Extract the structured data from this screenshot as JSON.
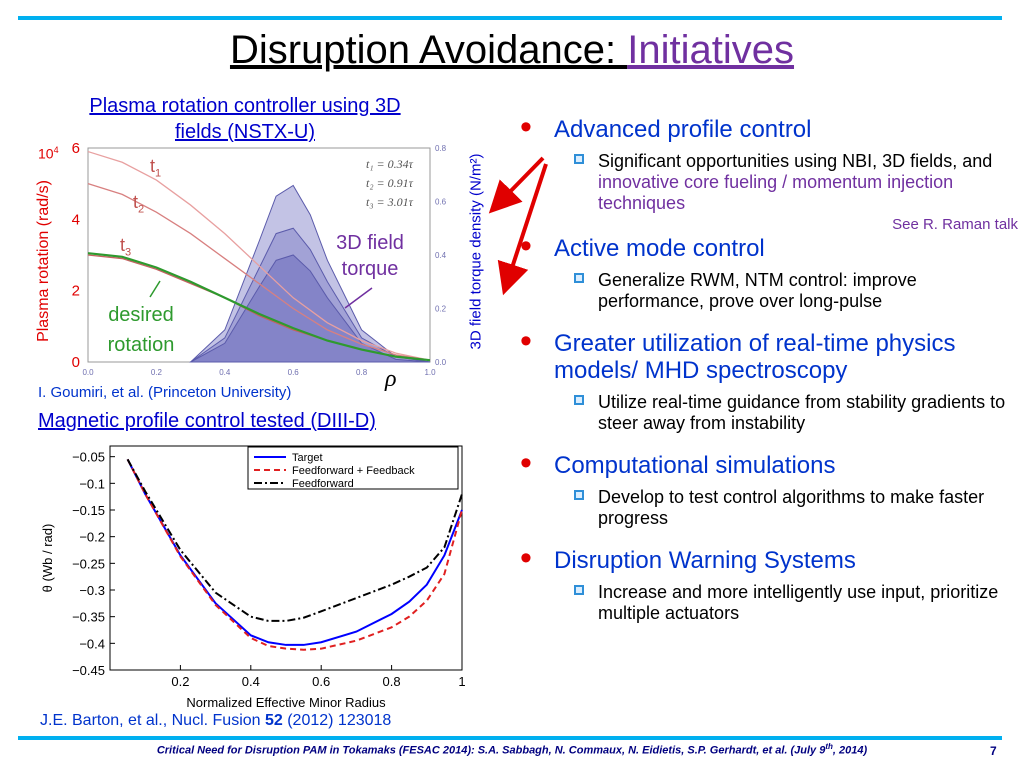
{
  "title": {
    "main": "Disruption Avoidance: ",
    "accent": "Initiatives"
  },
  "left_top": {
    "heading_line1": "Plasma rotation controller using 3D",
    "heading_line2": "fields (NSTX-U)",
    "exp_label": "10",
    "exp_sup": "4",
    "y_label": "Plasma rotation (rad/s)",
    "right_y_label": "3D field torque density (N/m²)",
    "y_ticks": [
      "6",
      "4",
      "2",
      "0"
    ],
    "x_ticks": [
      "0.0",
      "0.2",
      "0.4",
      "0.6",
      "0.8",
      "1.0"
    ],
    "right_ticks": [
      "0.8",
      "0.6",
      "0.4",
      "0.2",
      "0.0"
    ],
    "legend": [
      "t₁ = 0.34τ",
      "t₂ = 0.91τ",
      "t₃ = 3.01τ"
    ],
    "t1": "t",
    "t1_sub": "1",
    "t2": "t",
    "t2_sub": "2",
    "t3": "t",
    "t3_sub": "3",
    "torque_label_1": "3D field",
    "torque_label_2": "torque",
    "desired_1": "desired",
    "desired_2": "rotation",
    "rho": "ρ",
    "citation": "I. Goumiri, et al. (Princeton University)"
  },
  "left_bottom": {
    "heading": "Magnetic profile control tested (DIII-D)",
    "y_label": "θ (Wb / rad)",
    "x_label": "Normalized Effective Minor Radius",
    "citation_pre": "J.E. Barton, et al., Nucl. Fusion ",
    "citation_bold": "52",
    "citation_post": " (2012) 123018"
  },
  "chart_data": [
    {
      "type": "line",
      "title": "",
      "xlabel": "ρ",
      "ylabel": "Plasma rotation (rad/s)",
      "y2label": "3D field torque density (N/m²)",
      "xlim": [
        0,
        1
      ],
      "ylim": [
        0,
        6
      ],
      "y2lim": [
        0,
        0.8
      ],
      "series": [
        {
          "name": "t1",
          "x": [
            0,
            0.1,
            0.2,
            0.3,
            0.4,
            0.5,
            0.6,
            0.7,
            0.8,
            0.9,
            1.0
          ],
          "values": [
            5.9,
            5.6,
            5.1,
            4.4,
            3.6,
            2.7,
            1.8,
            1.1,
            0.6,
            0.25,
            0.05
          ]
        },
        {
          "name": "t2",
          "x": [
            0,
            0.1,
            0.2,
            0.3,
            0.4,
            0.5,
            0.6,
            0.7,
            0.8,
            0.9,
            1.0
          ],
          "values": [
            5.0,
            4.7,
            4.2,
            3.6,
            2.9,
            2.2,
            1.5,
            0.9,
            0.5,
            0.2,
            0.05
          ]
        },
        {
          "name": "t3",
          "x": [
            0,
            0.1,
            0.2,
            0.3,
            0.4,
            0.5,
            0.6,
            0.7,
            0.8,
            0.9,
            1.0
          ],
          "values": [
            3.0,
            2.9,
            2.6,
            2.2,
            1.8,
            1.3,
            0.9,
            0.6,
            0.35,
            0.15,
            0.05
          ]
        },
        {
          "name": "desired rotation",
          "x": [
            0,
            0.1,
            0.2,
            0.3,
            0.4,
            0.5,
            0.6,
            0.7,
            0.8,
            0.9,
            1.0
          ],
          "values": [
            3.05,
            2.95,
            2.65,
            2.25,
            1.8,
            1.35,
            0.95,
            0.6,
            0.35,
            0.15,
            0.05
          ]
        },
        {
          "name": "torque profile 1",
          "axis": "y2",
          "x": [
            0.3,
            0.4,
            0.5,
            0.55,
            0.6,
            0.65,
            0.7,
            0.8,
            0.9,
            1.0
          ],
          "values": [
            0.0,
            0.12,
            0.45,
            0.62,
            0.66,
            0.55,
            0.38,
            0.12,
            0.02,
            0.0
          ]
        },
        {
          "name": "torque profile 2",
          "axis": "y2",
          "x": [
            0.3,
            0.4,
            0.5,
            0.55,
            0.6,
            0.65,
            0.7,
            0.8,
            0.9,
            1.0
          ],
          "values": [
            0.0,
            0.09,
            0.35,
            0.48,
            0.5,
            0.42,
            0.3,
            0.09,
            0.02,
            0.0
          ]
        },
        {
          "name": "torque profile 3",
          "axis": "y2",
          "x": [
            0.3,
            0.4,
            0.5,
            0.55,
            0.6,
            0.65,
            0.7,
            0.8,
            0.9,
            1.0
          ],
          "values": [
            0.0,
            0.07,
            0.28,
            0.38,
            0.4,
            0.34,
            0.24,
            0.07,
            0.01,
            0.0
          ]
        }
      ],
      "legend_position": "top-right"
    },
    {
      "type": "line",
      "title": "",
      "xlabel": "Normalized Effective Minor Radius",
      "ylabel": "θ (Wb / rad)",
      "xlim": [
        0,
        1
      ],
      "ylim": [
        -0.45,
        -0.03
      ],
      "x_ticks": [
        "0.2",
        "0.4",
        "0.6",
        "0.8",
        "1"
      ],
      "y_ticks": [
        "−0.05",
        "−0.1",
        "−0.15",
        "−0.2",
        "−0.25",
        "−0.3",
        "−0.35",
        "−0.4",
        "−0.45"
      ],
      "series": [
        {
          "name": "Target",
          "color": "#0000ff",
          "x": [
            0.05,
            0.1,
            0.2,
            0.3,
            0.4,
            0.45,
            0.5,
            0.55,
            0.6,
            0.7,
            0.8,
            0.85,
            0.9,
            0.95,
            1.0
          ],
          "values": [
            -0.055,
            -0.12,
            -0.235,
            -0.325,
            -0.385,
            -0.398,
            -0.403,
            -0.403,
            -0.398,
            -0.378,
            -0.345,
            -0.322,
            -0.29,
            -0.235,
            -0.15
          ]
        },
        {
          "name": "Feedforward + Feedback",
          "color": "#e02020",
          "x": [
            0.05,
            0.1,
            0.2,
            0.3,
            0.4,
            0.45,
            0.5,
            0.55,
            0.6,
            0.7,
            0.8,
            0.85,
            0.9,
            0.95,
            1.0
          ],
          "values": [
            -0.055,
            -0.12,
            -0.237,
            -0.328,
            -0.39,
            -0.405,
            -0.41,
            -0.412,
            -0.41,
            -0.395,
            -0.37,
            -0.35,
            -0.32,
            -0.27,
            -0.15
          ]
        },
        {
          "name": "Feedforward",
          "color": "#000000",
          "x": [
            0.05,
            0.1,
            0.2,
            0.3,
            0.4,
            0.45,
            0.5,
            0.55,
            0.6,
            0.7,
            0.8,
            0.85,
            0.9,
            0.95,
            1.0
          ],
          "values": [
            -0.055,
            -0.115,
            -0.225,
            -0.305,
            -0.35,
            -0.358,
            -0.358,
            -0.352,
            -0.34,
            -0.315,
            -0.29,
            -0.275,
            -0.258,
            -0.22,
            -0.12
          ]
        }
      ],
      "legend_position": "top-right"
    }
  ],
  "bullets": [
    {
      "head": "Advanced profile control",
      "sub": {
        "pre": "Significant opportunities using NBI, 3D fields, and ",
        "accent": "innovative core fueling / momentum injection techniques"
      },
      "note": "See R. Raman talk"
    },
    {
      "head": "Active mode control",
      "sub": "Generalize RWM, NTM control: improve performance, prove over long-pulse"
    },
    {
      "head": "Greater utilization of real-time physics models/ MHD spectroscopy",
      "sub": "Utilize real-time guidance from stability gradients to steer away from instability"
    },
    {
      "head": "Computational simulations",
      "sub": "Develop to test control algorithms to make faster progress"
    },
    {
      "head": "Disruption Warning Systems",
      "sub": "Increase and more intelligently use input, prioritize multiple actuators"
    }
  ],
  "footer": {
    "pre": "Critical Need for Disruption PAM in Tokamaks (FESAC 2014): S.A. Sabbagh, N. Commaux, N. Eidietis, S.P. Gerhardt, et al. (July 9",
    "sup": "th",
    "post": ", 2014)",
    "page": "7"
  },
  "colors": {
    "rule": "#00b0f0",
    "accent_purple": "#7030a0",
    "heading_blue": "#0033cc",
    "bullet_red": "#e00000",
    "arrow_red": "#e00000",
    "rotation_green": "#2e9a2e"
  }
}
